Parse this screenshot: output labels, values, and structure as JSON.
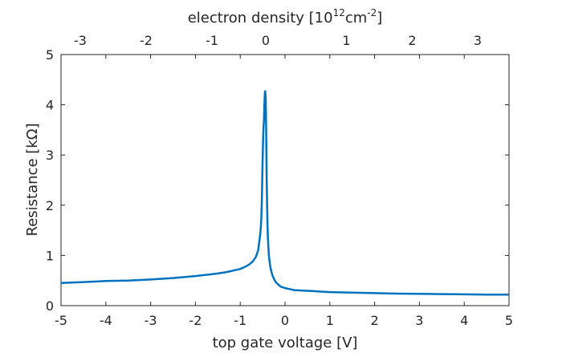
{
  "chart_data": {
    "type": "line",
    "xlabel": "top gate voltage [V]",
    "ylabel": "Resistance [kΩ]",
    "top_xlabel": {
      "base": "electron density [10",
      "exp1": "12",
      "mid": "cm",
      "exp2": "-2",
      "end": "]"
    },
    "xlim": [
      -5,
      5
    ],
    "ylim": [
      0,
      5
    ],
    "xticks": [
      "-5",
      "-4",
      "-3",
      "-2",
      "-1",
      "0",
      "1",
      "2",
      "3",
      "4",
      "5"
    ],
    "yticks": [
      "0",
      "1",
      "2",
      "3",
      "4",
      "5"
    ],
    "top_xticks": [
      {
        "label": "-3",
        "v": -4.57
      },
      {
        "label": "-2",
        "v": -3.1
      },
      {
        "label": "-1",
        "v": -1.63
      },
      {
        "label": "0",
        "v": -0.43
      },
      {
        "label": "1",
        "v": 1.37
      },
      {
        "label": "2",
        "v": 2.84
      },
      {
        "label": "3",
        "v": 4.3
      }
    ],
    "grid": false,
    "line_color": "#0072BD",
    "series": [
      {
        "x": [
          -5.0,
          -4.5,
          -4.0,
          -3.5,
          -3.0,
          -2.5,
          -2.0,
          -1.7,
          -1.5,
          -1.3,
          -1.15,
          -1.0,
          -0.9,
          -0.8,
          -0.72,
          -0.65,
          -0.6,
          -0.57,
          -0.55,
          -0.53,
          -0.52,
          -0.51,
          -0.5,
          -0.49,
          -0.48,
          -0.47,
          -0.46,
          -0.45,
          -0.44,
          -0.43,
          -0.42,
          -0.41,
          -0.4,
          -0.39,
          -0.38,
          -0.36,
          -0.34,
          -0.32,
          -0.3,
          -0.27,
          -0.24,
          -0.2,
          -0.15,
          -0.1,
          0.0,
          0.1,
          0.2,
          0.4,
          0.6,
          0.8,
          1.0,
          1.5,
          2.0,
          2.5,
          3.0,
          3.5,
          4.0,
          4.5,
          5.0
        ],
        "y": [
          0.45,
          0.47,
          0.49,
          0.5,
          0.52,
          0.55,
          0.59,
          0.62,
          0.64,
          0.67,
          0.7,
          0.73,
          0.77,
          0.82,
          0.88,
          0.97,
          1.1,
          1.3,
          1.45,
          1.7,
          2.0,
          2.4,
          2.9,
          3.3,
          3.55,
          3.7,
          4.0,
          4.25,
          4.27,
          4.1,
          3.4,
          2.6,
          2.0,
          1.6,
          1.3,
          1.0,
          0.85,
          0.74,
          0.66,
          0.58,
          0.52,
          0.46,
          0.42,
          0.38,
          0.35,
          0.33,
          0.31,
          0.3,
          0.29,
          0.28,
          0.27,
          0.26,
          0.25,
          0.24,
          0.235,
          0.23,
          0.225,
          0.22,
          0.22
        ]
      }
    ]
  }
}
